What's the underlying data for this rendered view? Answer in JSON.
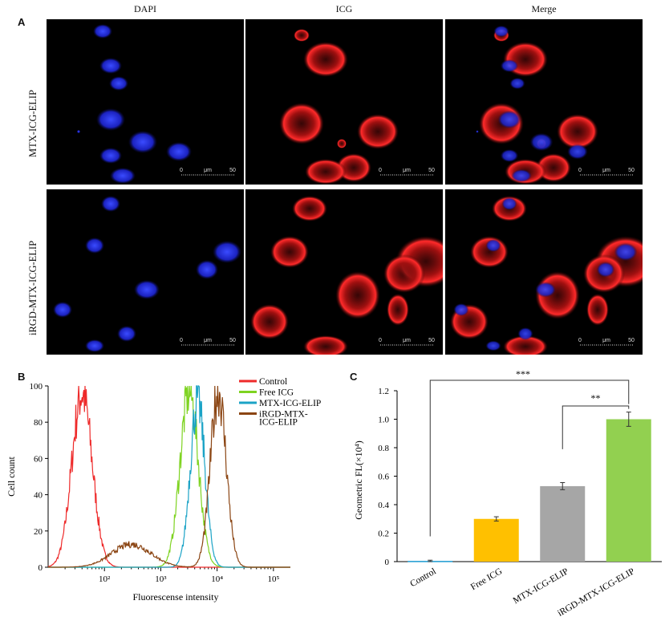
{
  "figure": {
    "panel_A_label": "A",
    "panel_B_label": "B",
    "panel_C_label": "C",
    "columns": [
      "DAPI",
      "ICG",
      "Merge"
    ],
    "rows": [
      "MTX-ICG-ELIP",
      "iRGD-MTX-ICG-ELIP"
    ],
    "scale_bar": {
      "start": "0",
      "unit": "μm",
      "end": "50"
    }
  },
  "chart_data": [
    {
      "type": "line",
      "xlabel": "Fluorescense intensity",
      "ylabel": "Cell count",
      "x_scale": "log",
      "x_tick_labels": [
        "10²",
        "10³",
        "10⁴",
        "10⁵"
      ],
      "x_ticks": [
        100,
        1000,
        10000,
        100000
      ],
      "xlim": [
        10,
        200000
      ],
      "ylim": [
        0,
        100
      ],
      "y_ticks": [
        0,
        20,
        40,
        60,
        80,
        100
      ],
      "legend_position": "top-right",
      "series": [
        {
          "name": "Control",
          "color": "#ee2a2a",
          "peak_x": 40,
          "peak_y": 99,
          "width_decades": 0.18
        },
        {
          "name": "Free ICG",
          "color": "#7ed321",
          "peak_x": 3200,
          "peak_y": 100,
          "width_decades": 0.16
        },
        {
          "name": "MTX-ICG-ELIP",
          "color": "#1ba3c6",
          "peak_x": 4500,
          "peak_y": 95,
          "width_decades": 0.13
        },
        {
          "name": "iRGD-MTX-ICG-ELIP",
          "color": "#8b4513",
          "peak_x": 10500,
          "peak_y": 100,
          "width_decades": 0.14,
          "shoulder_x": 300,
          "shoulder_y": 13
        }
      ]
    },
    {
      "type": "bar",
      "ylabel": "Geometric FL(×10⁴)",
      "categories": [
        "Control",
        "Free ICG",
        "MTX-ICG-ELIP",
        "iRGD-MTX-ICG-ELIP"
      ],
      "values": [
        0.005,
        0.3,
        0.53,
        1.0
      ],
      "errors": [
        0.005,
        0.015,
        0.025,
        0.05
      ],
      "colors": [
        "#1b9ad1",
        "#ffc000",
        "#a6a6a6",
        "#92d050"
      ],
      "ylim": [
        0,
        1.2
      ],
      "y_ticks": [
        0,
        0.2,
        0.4,
        0.6,
        0.8,
        1,
        1.2
      ],
      "y_tick_labels": [
        "0",
        "0.2",
        "0.4",
        "0.6",
        "0.8",
        "1.0",
        "1.2"
      ],
      "significance": [
        {
          "from": "Control",
          "to": "iRGD-MTX-ICG-ELIP",
          "label": "***"
        },
        {
          "from": "MTX-ICG-ELIP",
          "to": "iRGD-MTX-ICG-ELIP",
          "label": "**"
        }
      ]
    }
  ]
}
